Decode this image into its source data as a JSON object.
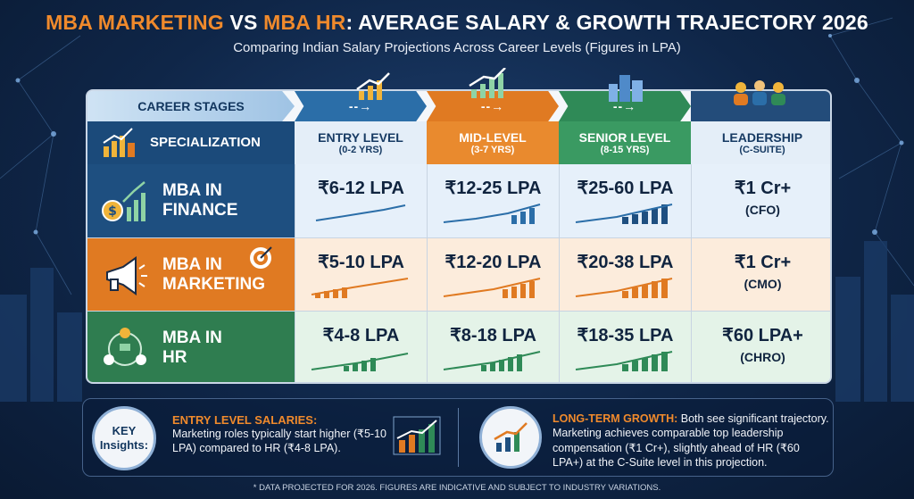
{
  "title": {
    "part1": "MBA Marketing",
    "part2": " vs ",
    "part3": "MBA HR",
    "part4": ": Average Salary & Growth Trajectory 2026"
  },
  "subtitle": "Comparing Indian Salary Projections Across Career Levels (Figures in LPA)",
  "stages": {
    "label": "Career Stages",
    "arrow": "--→"
  },
  "headers": {
    "specialization": "Specialization",
    "entry": {
      "label": "Entry Level",
      "range": "(0-2 Yrs)"
    },
    "mid": {
      "label": "Mid-Level",
      "range": "(3-7 Yrs)"
    },
    "senior": {
      "label": "Senior Level",
      "range": "(8-15 Yrs)"
    },
    "leadership": {
      "label": "Leadership",
      "range": "(C-Suite)"
    }
  },
  "rows": [
    {
      "name": "MBA in Finance",
      "line1": "MBA in",
      "line2": "Finance",
      "entry": "₹6-12 LPA",
      "mid": "₹12-25 LPA",
      "senior": "₹25-60 LPA",
      "leadership": "₹1 Cr+",
      "leadership_role": "(CFO)",
      "accent": "#2b6ea8"
    },
    {
      "name": "MBA in Marketing",
      "line1": "MBA in",
      "line2": "Marketing",
      "entry": "₹5-10 LPA",
      "mid": "₹12-20 LPA",
      "senior": "₹20-38 LPA",
      "leadership": "₹1 Cr+",
      "leadership_role": "(CMO)",
      "accent": "#e07a22"
    },
    {
      "name": "MBA in HR",
      "line1": "MBA in",
      "line2": "HR",
      "entry": "₹4-8 LPA",
      "mid": "₹8-18 LPA",
      "senior": "₹18-35 LPA",
      "leadership": "₹60 LPA+",
      "leadership_role": "(CHRO)",
      "accent": "#2f8a57"
    }
  ],
  "insights": {
    "key_label_1": "Key",
    "key_label_2": "Insights:",
    "entry_head": "Entry Level Salaries:",
    "entry_body": "Marketing roles typically start higher (₹5-10 LPA) compared to HR (₹4-8 LPA).",
    "growth_head": "Long-Term Growth:",
    "growth_body": " Both see significant trajectory. Marketing achieves comparable top leadership compensation (₹1 Cr+), slightly ahead of HR (₹60 LPA+) at the C-Suite level in this projection."
  },
  "footnote": "* Data projected for 2026. Figures are indicative and subject to industry variations.",
  "colors": {
    "orange": "#f08a2c",
    "navy": "#1b4a7a",
    "green": "#2f8a57",
    "blue": "#2b6ea8"
  },
  "icons": [
    "growth-chart-icon",
    "money-chart-icon",
    "megaphone-icon",
    "target-icon",
    "people-network-icon",
    "city-buildings-icon",
    "executives-icon"
  ]
}
